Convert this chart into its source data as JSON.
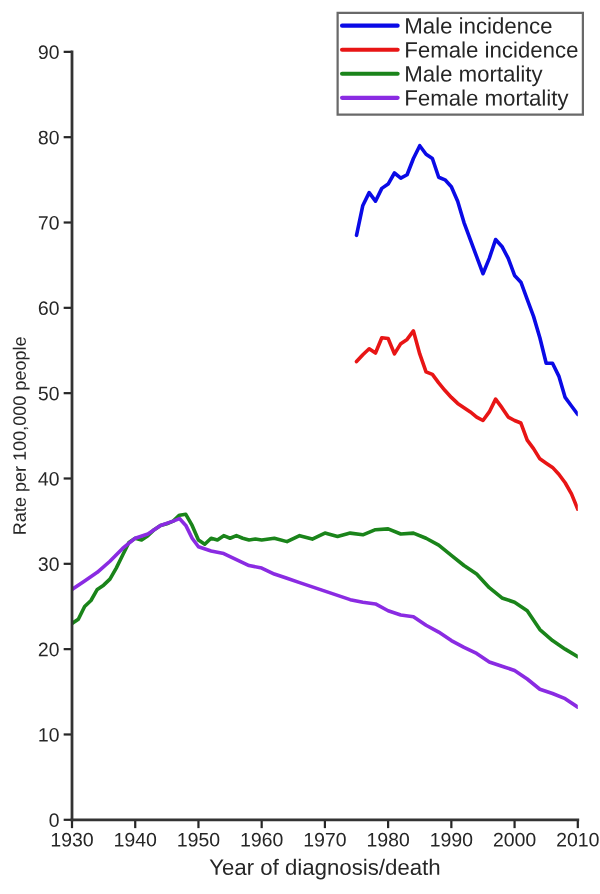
{
  "chart_data": {
    "type": "line",
    "xlabel": "Year of diagnosis/death",
    "ylabel": "Rate per 100,000 people",
    "xlim": [
      1930,
      2010
    ],
    "xticks": [
      1930,
      1940,
      1950,
      1960,
      1970,
      1980,
      1990,
      2000,
      2010
    ],
    "ylim": [
      0,
      90
    ],
    "yticks": [
      0,
      10,
      20,
      30,
      40,
      50,
      60,
      70,
      80,
      90
    ],
    "grid": false,
    "legend": "top right",
    "line_style": "solid",
    "series": [
      {
        "name": "Male incidence",
        "color": "#0a0ae6",
        "x": [
          1975,
          1976,
          1977,
          1978,
          1979,
          1980,
          1981,
          1982,
          1983,
          1984,
          1985,
          1986,
          1987,
          1988,
          1989,
          1990,
          1991,
          1992,
          1993,
          1994,
          1995,
          1996,
          1997,
          1998,
          1999,
          2000,
          2001,
          2002,
          2003,
          2004,
          2005,
          2006,
          2007,
          2008,
          2009,
          2010
        ],
        "values": [
          68.5,
          72,
          73.5,
          72.5,
          74,
          74.5,
          75.8,
          75.2,
          75.6,
          77.5,
          79,
          78,
          77.5,
          75.3,
          75,
          74.2,
          72.5,
          70,
          68,
          66,
          64,
          65.8,
          68,
          67.2,
          65.8,
          63.8,
          63,
          61,
          59,
          56.5,
          53.5,
          53.5,
          52,
          49.5,
          48.5,
          47.5
        ]
      },
      {
        "name": "Female incidence",
        "color": "#e81515",
        "x": [
          1975,
          1976,
          1977,
          1978,
          1979,
          1980,
          1981,
          1982,
          1983,
          1984,
          1985,
          1986,
          1987,
          1988,
          1989,
          1990,
          1991,
          1992,
          1993,
          1994,
          1995,
          1996,
          1997,
          1998,
          1999,
          2000,
          2001,
          2002,
          2003,
          2004,
          2005,
          2006,
          2007,
          2008,
          2009,
          2010
        ],
        "values": [
          53.7,
          54.5,
          55.2,
          54.7,
          56.5,
          56.4,
          54.6,
          55.8,
          56.3,
          57.3,
          54.6,
          52.5,
          52.2,
          51.2,
          50.3,
          49.5,
          48.8,
          48.3,
          47.8,
          47.2,
          46.8,
          47.8,
          49.3,
          48.3,
          47.2,
          46.8,
          46.5,
          44.5,
          43.5,
          42.3,
          41.8,
          41.3,
          40.5,
          39.5,
          38.2,
          36.4
        ]
      },
      {
        "name": "Male mortality",
        "color": "#1a841a",
        "x": [
          1930,
          1931,
          1932,
          1933,
          1934,
          1935,
          1936,
          1937,
          1938,
          1939,
          1940,
          1941,
          1942,
          1943,
          1944,
          1945,
          1946,
          1947,
          1948,
          1949,
          1950,
          1951,
          1952,
          1953,
          1954,
          1955,
          1956,
          1957,
          1958,
          1959,
          1960,
          1962,
          1964,
          1966,
          1968,
          1970,
          1972,
          1974,
          1976,
          1978,
          1980,
          1982,
          1984,
          1986,
          1988,
          1990,
          1992,
          1994,
          1996,
          1998,
          2000,
          2002,
          2004,
          2006,
          2008,
          2010
        ],
        "values": [
          23,
          23.5,
          25,
          25.7,
          27,
          27.5,
          28.2,
          29.5,
          31,
          32.5,
          33,
          32.8,
          33.3,
          34,
          34.5,
          34.7,
          35,
          35.7,
          35.8,
          34.5,
          32.8,
          32.3,
          33,
          32.8,
          33.3,
          33,
          33.3,
          33,
          32.8,
          32.9,
          32.8,
          33,
          32.6,
          33.3,
          32.9,
          33.6,
          33.2,
          33.6,
          33.4,
          34,
          34.1,
          33.5,
          33.6,
          33,
          32.2,
          31,
          29.8,
          28.8,
          27.2,
          26,
          25.5,
          24.5,
          22.3,
          21,
          20,
          19.1
        ]
      },
      {
        "name": "Female mortality",
        "color": "#8a2be2",
        "x": [
          1930,
          1932,
          1934,
          1936,
          1938,
          1940,
          1942,
          1944,
          1946,
          1947,
          1948,
          1949,
          1950,
          1952,
          1954,
          1956,
          1958,
          1960,
          1962,
          1964,
          1966,
          1968,
          1970,
          1972,
          1974,
          1976,
          1978,
          1980,
          1982,
          1984,
          1986,
          1988,
          1990,
          1992,
          1994,
          1996,
          1998,
          2000,
          2002,
          2004,
          2006,
          2008,
          2010
        ],
        "values": [
          27,
          28,
          29,
          30.3,
          31.8,
          33,
          33.5,
          34.5,
          35,
          35.3,
          34.5,
          33,
          32,
          31.5,
          31.2,
          30.5,
          29.8,
          29.5,
          28.8,
          28.3,
          27.8,
          27.3,
          26.8,
          26.3,
          25.8,
          25.5,
          25.3,
          24.5,
          24,
          23.8,
          22.8,
          22,
          21,
          20.2,
          19.5,
          18.5,
          18,
          17.5,
          16.5,
          15.3,
          14.8,
          14.2,
          13.2
        ]
      }
    ]
  }
}
